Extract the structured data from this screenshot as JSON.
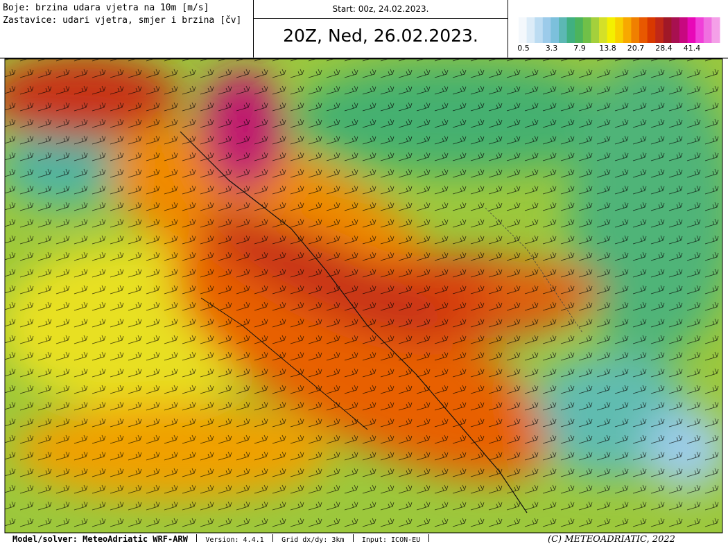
{
  "header": {
    "legend_colors": "Boje: brzina udara vjetra na 10m [m/s]",
    "legend_barbs": "Zastavice: udari vjetra, smjer i brzina [čv]",
    "start": "Start: 00z, 24.02.2023.",
    "title": "20Z, Ned, 26.02.2023."
  },
  "colorbar": {
    "colors": [
      "#f4f8fc",
      "#dcecf8",
      "#bcdcf2",
      "#9ccbea",
      "#7cc0dc",
      "#5cb8b4",
      "#40b080",
      "#4cb45c",
      "#70c048",
      "#a4d03c",
      "#d4e028",
      "#f4f000",
      "#f8d000",
      "#f8a800",
      "#f08000",
      "#e85800",
      "#d83800",
      "#c02818",
      "#a01828",
      "#a81050",
      "#c80880",
      "#e808b8",
      "#f040d8",
      "#f070e0",
      "#f4a0e8"
    ],
    "ticks": [
      "0.5",
      "3.3",
      "7.9",
      "13.8",
      "20.7",
      "28.4",
      "41.4"
    ]
  },
  "footer": {
    "model": "Model/solver: MeteoAdriatic WRF-ARW",
    "version": "Version: 4.4.1",
    "grid": "Grid dx/dy: 3km",
    "input": "Input: ICON-EU",
    "copyright": "(C) METEOADRIATIC, 2022"
  }
}
